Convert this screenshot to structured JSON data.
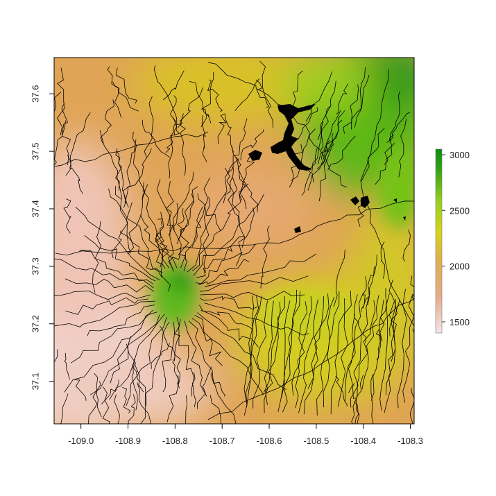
{
  "map": {
    "x_axis": {
      "ticks": [
        -109.0,
        -108.9,
        -108.8,
        -108.7,
        -108.6,
        -108.5,
        -108.4,
        -108.3
      ],
      "tick_labels": [
        "-109.0",
        "-108.9",
        "-108.8",
        "-108.7",
        "-108.6",
        "-108.5",
        "-108.4",
        "-108.3"
      ],
      "range": [
        -109.057,
        -108.292
      ]
    },
    "y_axis": {
      "ticks": [
        37.1,
        37.2,
        37.3,
        37.4,
        37.5,
        37.6
      ],
      "tick_labels": [
        "37.1",
        "37.2",
        "37.3",
        "37.4",
        "37.5",
        "37.6"
      ],
      "range": [
        37.026,
        37.663
      ]
    },
    "legend": {
      "position": "right",
      "range": [
        1400,
        3050
      ],
      "ticks": [
        1500,
        2000,
        2500,
        3000
      ],
      "tick_labels": [
        "1500",
        "2000",
        "2500",
        "3000"
      ],
      "colors": [
        "#f1e6e6",
        "#e8aa8c",
        "#dfb04a",
        "#d6d41c",
        "#96cf1c",
        "#3aa416",
        "#078e0c"
      ]
    },
    "colors": {
      "lowland": "#efc9bd",
      "mid": "#dfaa4a",
      "upland": "#c7cf1f",
      "highland": "#3aa416",
      "rivers": "#000000",
      "water": "#000000"
    }
  }
}
